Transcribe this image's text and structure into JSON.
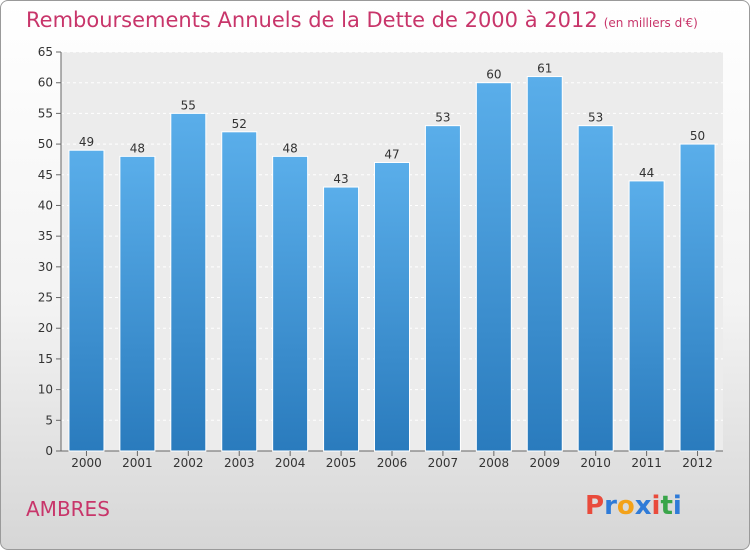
{
  "header": {
    "title": "Remboursements Annuels de la Dette de 2000 à 2012",
    "unit": "(en milliers d'€)"
  },
  "footer": {
    "commune": "AMBRES",
    "logo_text": "Proxiti"
  },
  "colors": {
    "title": "#c8356a",
    "bar_top": "#5aaeea",
    "bar_bottom": "#2a7bbd",
    "logo_letters": [
      "#e94b3c",
      "#2f7bd8",
      "#f3a21a",
      "#2f7bd8",
      "#e94b3c",
      "#3aa54a",
      "#2f7bd8"
    ]
  },
  "chart_data": {
    "type": "bar",
    "title": "Remboursements Annuels de la Dette de 2000 à 2012",
    "categories": [
      "2000",
      "2001",
      "2002",
      "2003",
      "2004",
      "2005",
      "2006",
      "2007",
      "2008",
      "2009",
      "2010",
      "2011",
      "2012"
    ],
    "values": [
      49,
      48,
      55,
      52,
      48,
      43,
      47,
      53,
      60,
      61,
      53,
      44,
      50
    ],
    "ylim": [
      0,
      65
    ],
    "yticks": [
      0,
      5,
      10,
      15,
      20,
      25,
      30,
      35,
      40,
      45,
      50,
      55,
      60,
      65
    ],
    "grid": true,
    "xlabel": "",
    "ylabel": ""
  }
}
